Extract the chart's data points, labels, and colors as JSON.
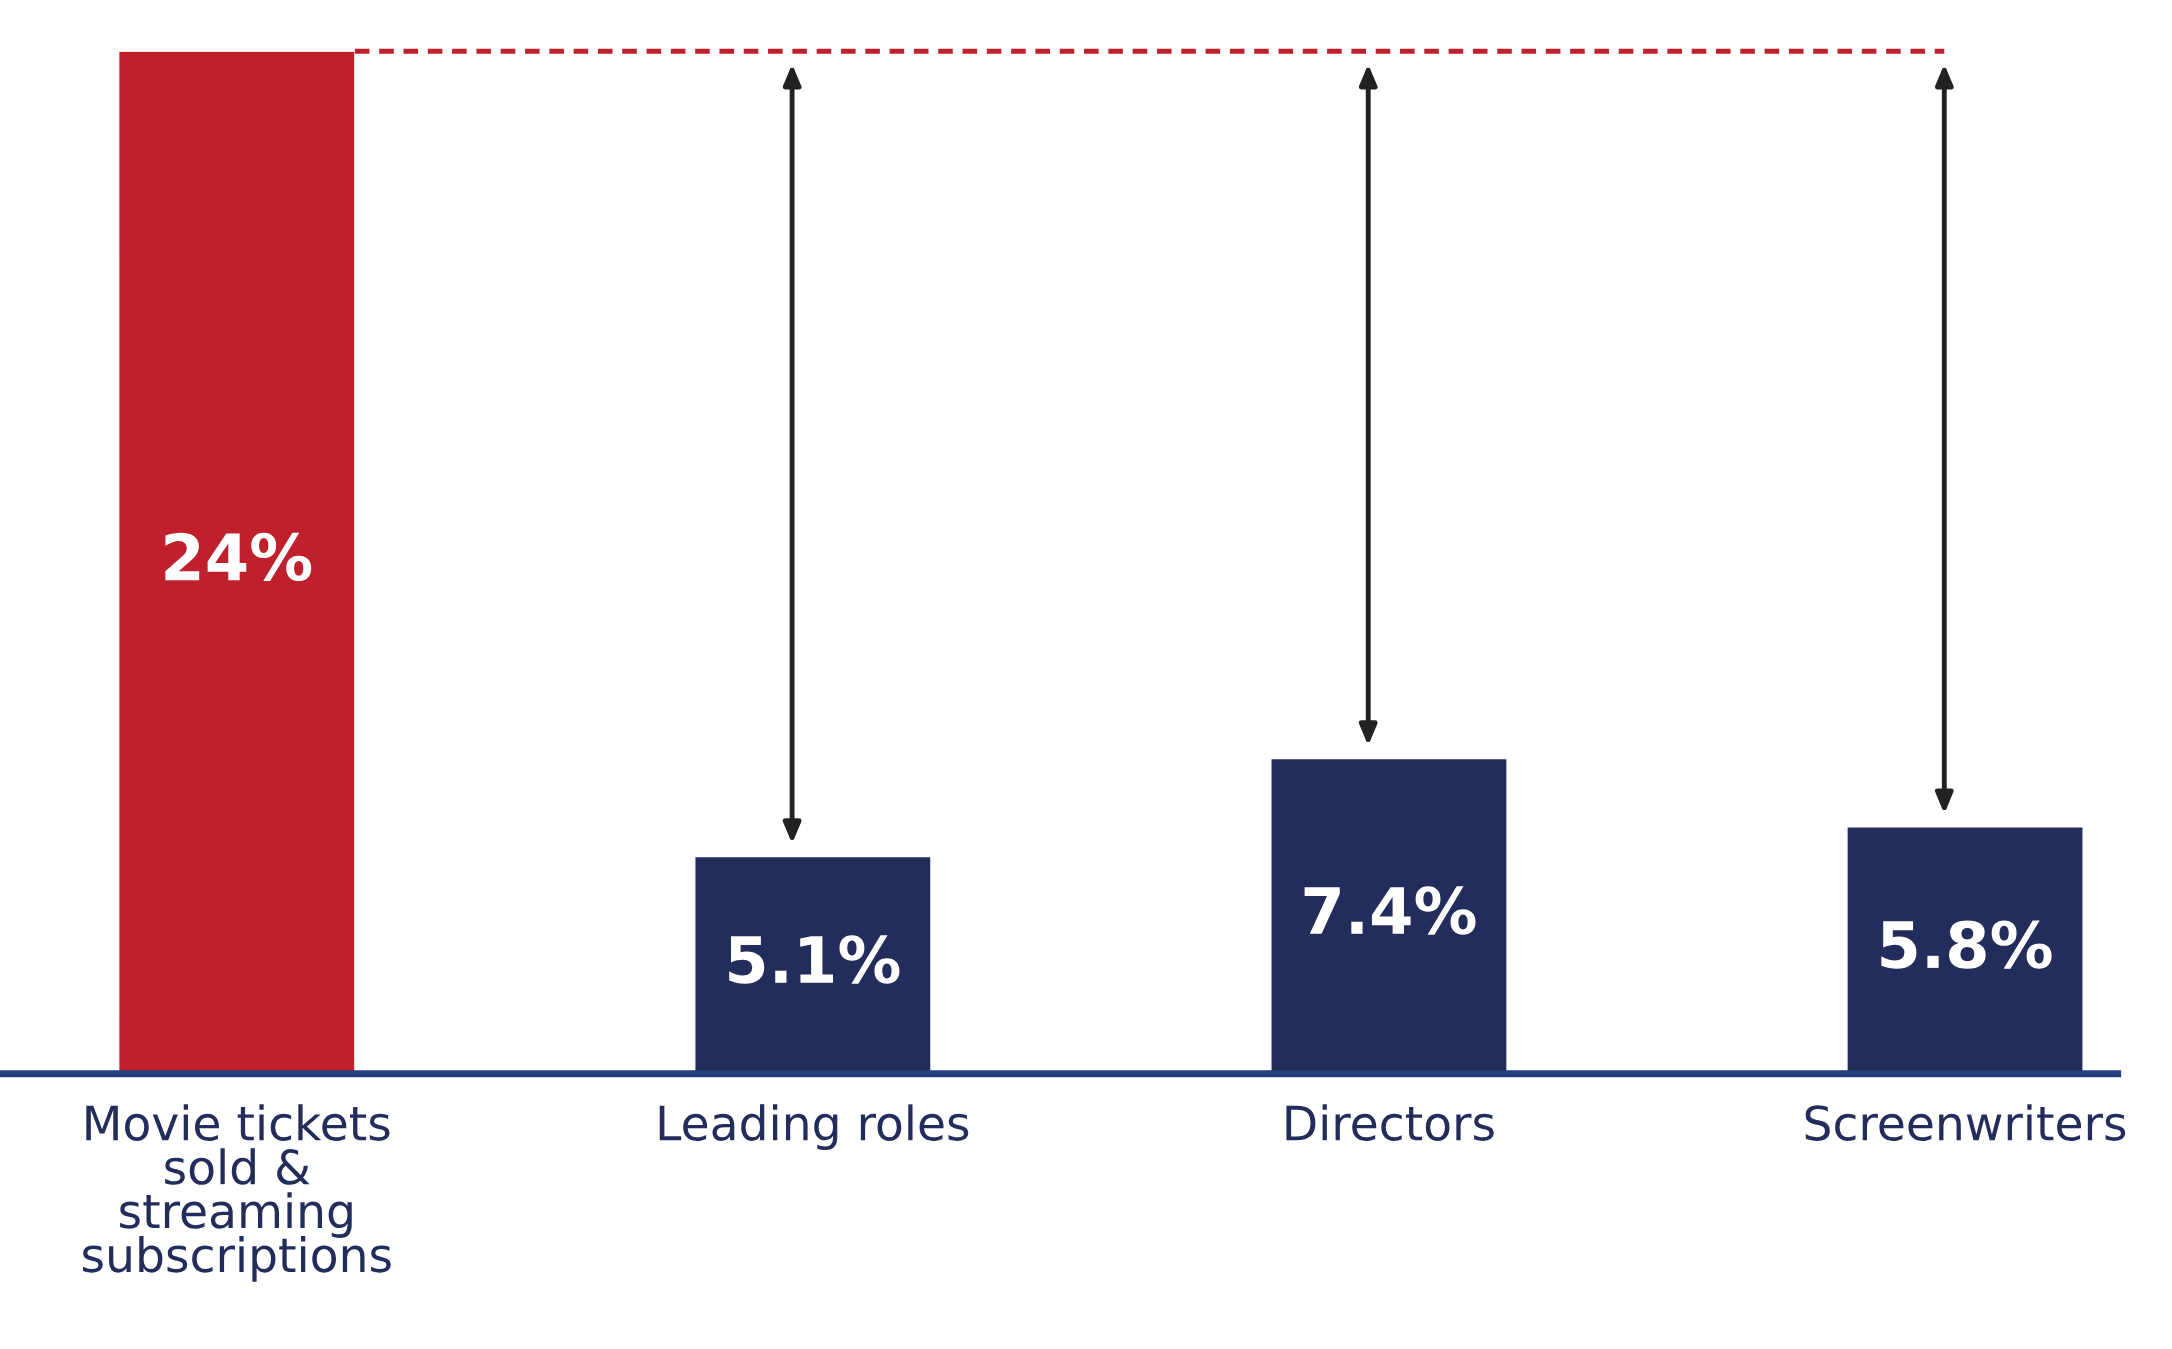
{
  "chart_data": {
    "type": "bar",
    "categories": [
      "Movie tickets\nsold &\nstreaming\nsubscriptions",
      "Leading roles",
      "Directors",
      "Screenwriters"
    ],
    "values": [
      24,
      5.1,
      7.4,
      5.8
    ],
    "colors": [
      "#c0202b",
      "#232d5c",
      "#232d5c",
      "#232d5c"
    ],
    "value_labels": [
      "24%",
      "5.1%",
      "7.4%",
      "5.8%"
    ],
    "ref_lines": [
      {
        "axis": "y",
        "value": 24,
        "color": "#c0202b",
        "line_style": "dashed"
      }
    ],
    "grid": false
  }
}
